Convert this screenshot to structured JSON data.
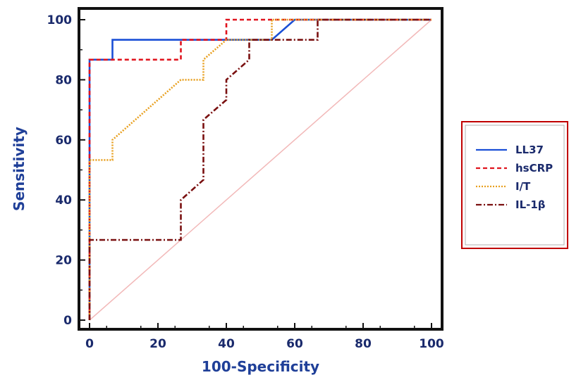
{
  "chart_data": {
    "type": "line",
    "xlabel": "100-Specificity",
    "ylabel": "Sensitivity",
    "xlim": [
      0,
      100
    ],
    "ylim": [
      0,
      100
    ],
    "x_ticks": [
      "0",
      "20",
      "40",
      "60",
      "80",
      "100"
    ],
    "y_ticks": [
      "0",
      "20",
      "40",
      "60",
      "80",
      "100"
    ],
    "legend_position": "right",
    "diagonal_reference": true,
    "colors": {
      "frame": "#111111",
      "diagonal": "#f2b8b8",
      "legend_border": "#c00000",
      "axis_title": "#1f3f98"
    },
    "series": [
      {
        "name": "LL37",
        "color": "#1a4fd6",
        "style": "solid",
        "points": [
          [
            0,
            0
          ],
          [
            0,
            86.7
          ],
          [
            6.7,
            86.7
          ],
          [
            6.7,
            93.3
          ],
          [
            53.3,
            93.3
          ],
          [
            60,
            100
          ],
          [
            100,
            100
          ]
        ]
      },
      {
        "name": "hsCRP",
        "color": "#e0141e",
        "style": "dashed",
        "points": [
          [
            0,
            0
          ],
          [
            0,
            86.7
          ],
          [
            26.7,
            86.7
          ],
          [
            26.7,
            93.3
          ],
          [
            40,
            93.3
          ],
          [
            40,
            100
          ],
          [
            100,
            100
          ]
        ]
      },
      {
        "name": "I/T",
        "color": "#e8a020",
        "style": "dotted",
        "points": [
          [
            0,
            0
          ],
          [
            0,
            53.3
          ],
          [
            6.7,
            53.3
          ],
          [
            6.7,
            60
          ],
          [
            26.7,
            80
          ],
          [
            33.3,
            80
          ],
          [
            33.3,
            86.7
          ],
          [
            40,
            93.3
          ],
          [
            53.3,
            93.3
          ],
          [
            53.3,
            100
          ],
          [
            100,
            100
          ]
        ]
      },
      {
        "name": "IL-1β",
        "color": "#7a1010",
        "style": "dashdot",
        "points": [
          [
            0,
            0
          ],
          [
            0,
            26.7
          ],
          [
            26.7,
            26.7
          ],
          [
            26.7,
            40
          ],
          [
            33.3,
            46.7
          ],
          [
            33.3,
            66.7
          ],
          [
            40,
            73.3
          ],
          [
            40,
            80
          ],
          [
            46.7,
            86.7
          ],
          [
            46.7,
            93.3
          ],
          [
            66.7,
            93.3
          ],
          [
            66.7,
            100
          ],
          [
            100,
            100
          ]
        ]
      }
    ]
  }
}
